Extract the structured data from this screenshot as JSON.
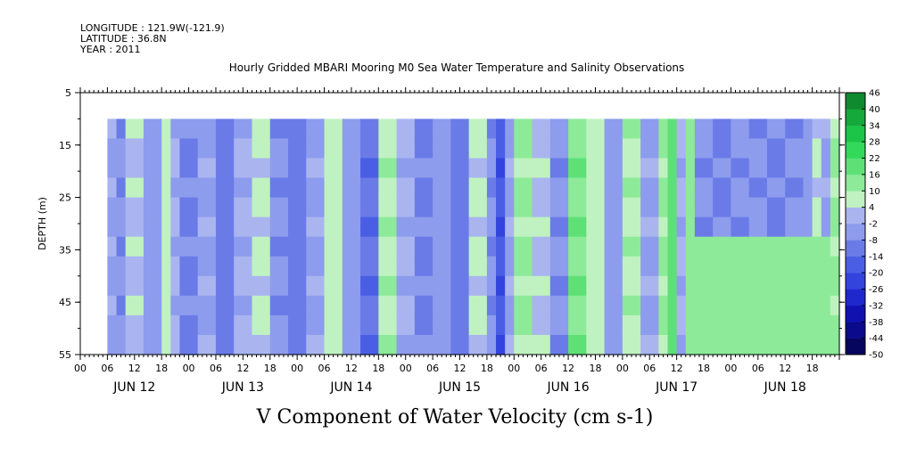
{
  "header": {
    "longitude": "LONGITUDE : 121.9W(-121.9)",
    "latitude": "LATITUDE : 36.8N",
    "year": "YEAR : 2011",
    "title": "Hourly Gridded MBARI Mooring M0 Sea Water Temperature and Salinity Observations"
  },
  "caption": "V Component of Water Velocity (cm s-1)",
  "chart_data": {
    "type": "heatmap",
    "title": "Hourly Gridded MBARI Mooring M0 Sea Water Temperature and Salinity Observations",
    "xlabel": "",
    "ylabel": "DEPTH (m)",
    "variable": "V Component of Water Velocity (cm s-1)",
    "y_ticks": [
      5,
      15,
      25,
      35,
      45,
      55
    ],
    "y_range": [
      5,
      55
    ],
    "y_inverted": true,
    "data_depth_range": [
      10,
      55
    ],
    "x_hour_labels": [
      "00",
      "06",
      "12",
      "18",
      "00",
      "06",
      "12",
      "18",
      "00",
      "06",
      "12",
      "18",
      "00",
      "06",
      "12",
      "18",
      "00",
      "06",
      "12",
      "18",
      "00",
      "06",
      "12",
      "18",
      "00",
      "06",
      "12",
      "18"
    ],
    "x_day_labels": [
      "JUN 12",
      "JUN 13",
      "JUN 14",
      "JUN 15",
      "JUN 16",
      "JUN 17",
      "JUN 18"
    ],
    "x_range_hours": [
      0,
      168
    ],
    "data_start_hour": 6,
    "colorbar": {
      "levels": [
        -50,
        -44,
        -38,
        -32,
        -26,
        -20,
        -14,
        -8,
        -2,
        4,
        10,
        16,
        22,
        28,
        34,
        40,
        46
      ],
      "colors_negative": [
        "#06065e",
        "#0a0a8a",
        "#1111b0",
        "#1f28cc",
        "#3344dd",
        "#4a5ee5",
        "#6a7be8",
        "#8d9cec",
        "#aab5f0"
      ],
      "colors_positive": [
        "#bff2c0",
        "#8dea98",
        "#5fe077",
        "#33d95a",
        "#1cc548",
        "#15a83a",
        "#0f8a2e",
        "#0a6a22",
        "#064d17"
      ]
    },
    "bands": [
      {
        "t": 6,
        "v": -4
      },
      {
        "t": 8,
        "v": -8
      },
      {
        "t": 10,
        "v": 2
      },
      {
        "t": 14,
        "v": -6
      },
      {
        "t": 18,
        "v": 6
      },
      {
        "t": 20,
        "v": -2
      },
      {
        "t": 22,
        "v": -10
      },
      {
        "t": 26,
        "v": -4
      },
      {
        "t": 30,
        "v": -12
      },
      {
        "t": 34,
        "v": -2
      },
      {
        "t": 38,
        "v": 4
      },
      {
        "t": 42,
        "v": -8
      },
      {
        "t": 46,
        "v": -12
      },
      {
        "t": 50,
        "v": -4
      },
      {
        "t": 54,
        "v": 6
      },
      {
        "t": 58,
        "v": -6
      },
      {
        "t": 62,
        "v": -14
      },
      {
        "t": 66,
        "v": 8
      },
      {
        "t": 70,
        "v": -2
      },
      {
        "t": 74,
        "v": -10
      },
      {
        "t": 78,
        "v": -6
      },
      {
        "t": 82,
        "v": -12
      },
      {
        "t": 86,
        "v": 4
      },
      {
        "t": 90,
        "v": -8
      },
      {
        "t": 92,
        "v": -20
      },
      {
        "t": 94,
        "v": -4
      },
      {
        "t": 96,
        "v": 10
      },
      {
        "t": 100,
        "v": 2
      },
      {
        "t": 104,
        "v": -8
      },
      {
        "t": 108,
        "v": 14
      },
      {
        "t": 112,
        "v": 6
      },
      {
        "t": 116,
        "v": -6
      },
      {
        "t": 120,
        "v": 8
      },
      {
        "t": 124,
        "v": -4
      },
      {
        "t": 128,
        "v": 10
      },
      {
        "t": 130,
        "v": 18
      },
      {
        "t": 132,
        "v": -2
      },
      {
        "t": 134,
        "v": 12
      },
      {
        "t": 136,
        "v": -8
      },
      {
        "t": 140,
        "v": -10
      },
      {
        "t": 144,
        "v": -8
      },
      {
        "t": 148,
        "v": -8
      },
      {
        "t": 152,
        "v": -10
      },
      {
        "t": 156,
        "v": -8
      },
      {
        "t": 160,
        "v": -6
      },
      {
        "t": 162,
        "v": 4
      },
      {
        "t": 164,
        "v": -4
      },
      {
        "t": 166,
        "v": 10
      },
      {
        "t": 168,
        "v": -2
      }
    ],
    "lower_region": {
      "t_start": 134,
      "t_end": 165,
      "depth_from": 32,
      "v": 10
    }
  }
}
